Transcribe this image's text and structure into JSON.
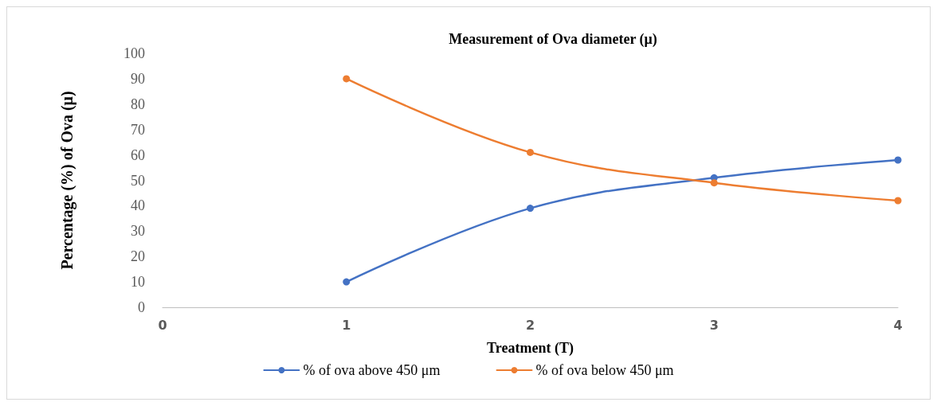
{
  "chart_data": {
    "type": "line",
    "title": "Measurement of Ova diameter (μ)",
    "xlabel": "Treatment (T)",
    "ylabel": "Percentage (%) of Ova (μ)",
    "x": [
      1,
      2,
      3,
      4
    ],
    "series": [
      {
        "name": "% of ova above 450 μm",
        "color": "#4472c4",
        "values": [
          10,
          39,
          51,
          58
        ]
      },
      {
        "name": "% of ova below 450 μm",
        "color": "#ed7d31",
        "values": [
          90,
          61,
          49,
          42
        ]
      }
    ],
    "xlim": [
      0,
      4
    ],
    "xticks": [
      0,
      1,
      2,
      3,
      4
    ],
    "ylim": [
      0,
      100
    ],
    "yticks": [
      0,
      10,
      20,
      30,
      40,
      50,
      60,
      70,
      80,
      90,
      100
    ],
    "grid": false,
    "legend": "bottom",
    "marker": "circle",
    "line_style": "solid"
  }
}
